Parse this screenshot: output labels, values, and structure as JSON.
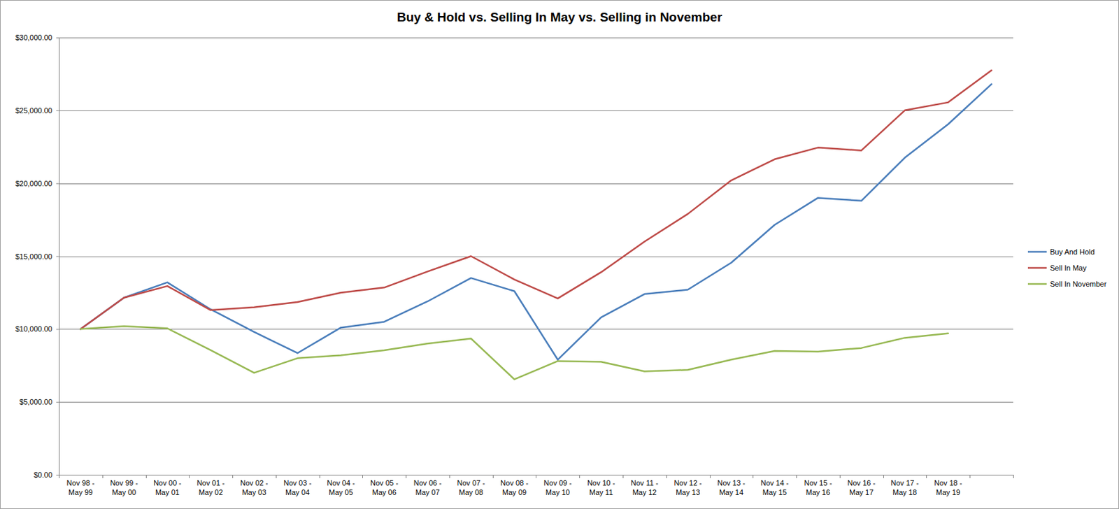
{
  "chart_data": {
    "type": "line",
    "title": "Buy & Hold vs. Selling In May vs. Selling in November",
    "categories": [
      "Nov 98 - May 99",
      "Nov 99 - May 00",
      "Nov 00 - May 01",
      "Nov 01 - May 02",
      "Nov 02 - May 03",
      "Nov 03 - May 04",
      "Nov 04 - May 05",
      "Nov 05 - May 06",
      "Nov 06 - May 07",
      "Nov 07 - May 08",
      "Nov 08 - May 09",
      "Nov 09 - May 10",
      "Nov 10 - May 11",
      "Nov 11 - May 12",
      "Nov 12 - May 13",
      "Nov 13 - May 14",
      "Nov 14 - May 15",
      "Nov 15 - May 16",
      "Nov 16 - May 17",
      "Nov 17 - May 18",
      "Nov 18 - May 19",
      null
    ],
    "series": [
      {
        "name": "Buy And Hold",
        "color": "#4a7ebb",
        "values": [
          10000,
          12150,
          13200,
          11350,
          9800,
          8350,
          10100,
          10500,
          11900,
          13500,
          12600,
          7900,
          10800,
          12400,
          12700,
          14550,
          17150,
          19000,
          18800,
          21750,
          24050,
          26800
        ]
      },
      {
        "name": "Sell In May",
        "color": "#be4b48",
        "values": [
          10000,
          12150,
          12950,
          11300,
          11500,
          11850,
          12500,
          12850,
          13950,
          15000,
          13400,
          12100,
          13900,
          16000,
          17900,
          20200,
          21650,
          22450,
          22250,
          25000,
          25550,
          27750
        ]
      },
      {
        "name": "Sell In November",
        "color": "#98b954",
        "values": [
          10000,
          10200,
          10050,
          8550,
          7000,
          8000,
          8200,
          8550,
          9000,
          9350,
          6550,
          7800,
          7750,
          7100,
          7200,
          7900,
          8500,
          8450,
          8700,
          9400,
          9700,
          null
        ]
      }
    ],
    "ylim": [
      0,
      30000
    ],
    "yticks": [
      {
        "value": 0,
        "label": "$0.00"
      },
      {
        "value": 5000,
        "label": "$5,000.00"
      },
      {
        "value": 10000,
        "label": "$10,000.00"
      },
      {
        "value": 15000,
        "label": "$15,000.00"
      },
      {
        "value": 20000,
        "label": "$20,000.00"
      },
      {
        "value": 25000,
        "label": "$25,000.00"
      },
      {
        "value": 30000,
        "label": "$30,000.00"
      }
    ],
    "grid": true,
    "legend": "right"
  }
}
